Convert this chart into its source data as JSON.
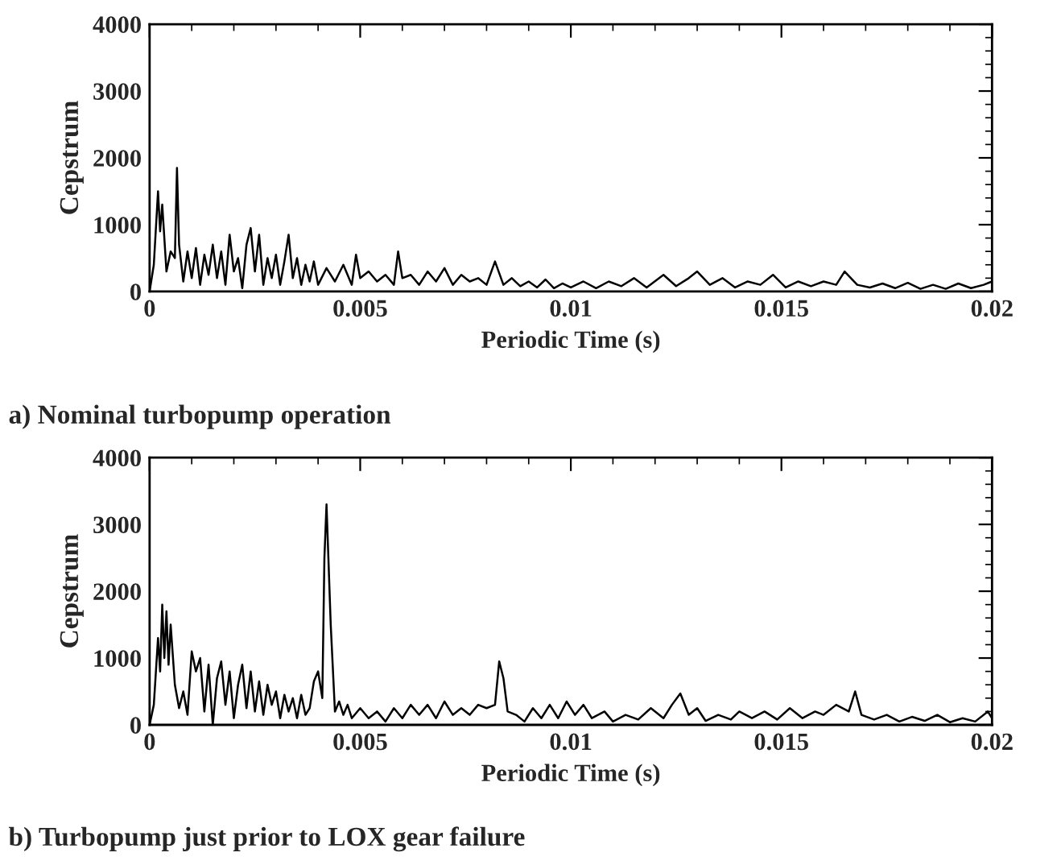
{
  "chart_data": [
    {
      "type": "line",
      "xlabel": "Periodic Time (s)",
      "ylabel": "Cepstrum",
      "annotations": [
        "a) Nominal turbopump operation"
      ],
      "xlim": [
        0,
        0.02
      ],
      "ylim": [
        0,
        4000
      ],
      "xticks": [
        0,
        0.005,
        0.01,
        0.015,
        0.02
      ],
      "yticks": [
        0,
        1000,
        2000,
        3000,
        4000
      ],
      "grid": false,
      "series": [
        {
          "color": "#000000",
          "x": [
            0,
            0.0001,
            0.0002,
            0.00025,
            0.0003,
            0.0004,
            0.0005,
            0.0006,
            0.00065,
            0.0007,
            0.0008,
            0.0009,
            0.001,
            0.0011,
            0.0012,
            0.0013,
            0.0014,
            0.0015,
            0.0016,
            0.0017,
            0.0018,
            0.0019,
            0.002,
            0.0021,
            0.0022,
            0.0023,
            0.0024,
            0.0025,
            0.0026,
            0.0027,
            0.0028,
            0.0029,
            0.003,
            0.0031,
            0.0032,
            0.0033,
            0.0034,
            0.0035,
            0.0036,
            0.0037,
            0.0038,
            0.0039,
            0.004,
            0.0042,
            0.0044,
            0.0046,
            0.0048,
            0.0049,
            0.005,
            0.0052,
            0.0054,
            0.0056,
            0.0058,
            0.0059,
            0.006,
            0.0062,
            0.0064,
            0.0066,
            0.0068,
            0.007,
            0.0072,
            0.0074,
            0.0076,
            0.0078,
            0.008,
            0.0082,
            0.0084,
            0.0086,
            0.0088,
            0.009,
            0.0092,
            0.0094,
            0.0096,
            0.0098,
            0.01,
            0.0103,
            0.0106,
            0.0109,
            0.0112,
            0.0115,
            0.0118,
            0.0122,
            0.0125,
            0.0128,
            0.013,
            0.0133,
            0.0136,
            0.0139,
            0.0142,
            0.0145,
            0.0148,
            0.0151,
            0.0154,
            0.0157,
            0.016,
            0.0163,
            0.0165,
            0.0168,
            0.0171,
            0.0174,
            0.0177,
            0.018,
            0.0183,
            0.0186,
            0.0189,
            0.0192,
            0.0195,
            0.0198,
            0.02
          ],
          "values": [
            0,
            400,
            1500,
            900,
            1300,
            300,
            600,
            500,
            1850,
            700,
            150,
            600,
            200,
            650,
            100,
            550,
            250,
            700,
            200,
            600,
            100,
            850,
            300,
            500,
            50,
            700,
            950,
            300,
            850,
            100,
            500,
            200,
            550,
            100,
            450,
            850,
            200,
            500,
            100,
            400,
            150,
            450,
            100,
            350,
            150,
            400,
            100,
            550,
            200,
            300,
            150,
            250,
            100,
            600,
            200,
            250,
            100,
            300,
            150,
            350,
            100,
            250,
            150,
            200,
            100,
            450,
            100,
            200,
            80,
            150,
            60,
            180,
            50,
            120,
            60,
            150,
            50,
            150,
            80,
            200,
            60,
            250,
            80,
            200,
            300,
            100,
            200,
            60,
            150,
            100,
            250,
            60,
            150,
            80,
            150,
            100,
            300,
            100,
            60,
            120,
            50,
            130,
            40,
            100,
            40,
            120,
            50,
            100,
            150
          ]
        }
      ]
    },
    {
      "type": "line",
      "xlabel": "Periodic Time (s)",
      "ylabel": "Cepstrum",
      "annotations": [
        "b) Turbopump just prior to LOX gear failure"
      ],
      "xlim": [
        0,
        0.02
      ],
      "ylim": [
        0,
        4000
      ],
      "xticks": [
        0,
        0.005,
        0.01,
        0.015,
        0.02
      ],
      "yticks": [
        0,
        1000,
        2000,
        3000,
        4000
      ],
      "grid": false,
      "series": [
        {
          "color": "#000000",
          "x": [
            0,
            0.0001,
            0.0002,
            0.00025,
            0.0003,
            0.00035,
            0.0004,
            0.00045,
            0.0005,
            0.0006,
            0.0007,
            0.0008,
            0.0009,
            0.001,
            0.0011,
            0.0012,
            0.0013,
            0.0014,
            0.0015,
            0.0016,
            0.0017,
            0.0018,
            0.0019,
            0.002,
            0.0021,
            0.0022,
            0.0023,
            0.0024,
            0.0025,
            0.0026,
            0.0027,
            0.0028,
            0.0029,
            0.003,
            0.0031,
            0.0032,
            0.0033,
            0.0034,
            0.0035,
            0.0036,
            0.0037,
            0.0038,
            0.0039,
            0.004,
            0.0041,
            0.00415,
            0.0042,
            0.0043,
            0.0044,
            0.0045,
            0.0046,
            0.0047,
            0.0048,
            0.005,
            0.0052,
            0.0054,
            0.0056,
            0.0058,
            0.006,
            0.0062,
            0.0064,
            0.0066,
            0.0068,
            0.007,
            0.0072,
            0.0074,
            0.0076,
            0.0078,
            0.008,
            0.0082,
            0.0083,
            0.0084,
            0.0085,
            0.0087,
            0.0089,
            0.0091,
            0.0093,
            0.0095,
            0.0097,
            0.0099,
            0.0101,
            0.0103,
            0.0105,
            0.0108,
            0.011,
            0.0113,
            0.0116,
            0.0119,
            0.0122,
            0.0124,
            0.0126,
            0.0128,
            0.013,
            0.0132,
            0.0135,
            0.0138,
            0.014,
            0.0143,
            0.0146,
            0.0149,
            0.0152,
            0.0155,
            0.0158,
            0.016,
            0.0163,
            0.0166,
            0.01675,
            0.0169,
            0.0172,
            0.0175,
            0.0178,
            0.0181,
            0.0184,
            0.0187,
            0.019,
            0.0193,
            0.0196,
            0.0199,
            0.02
          ],
          "values": [
            0,
            300,
            1300,
            800,
            1800,
            1000,
            1700,
            900,
            1500,
            600,
            250,
            500,
            150,
            1100,
            800,
            1000,
            200,
            900,
            0,
            700,
            950,
            300,
            800,
            100,
            600,
            900,
            250,
            800,
            200,
            650,
            150,
            600,
            300,
            500,
            100,
            450,
            200,
            400,
            100,
            450,
            150,
            250,
            650,
            800,
            400,
            2500,
            3300,
            1500,
            200,
            350,
            150,
            300,
            100,
            250,
            100,
            200,
            50,
            250,
            100,
            300,
            150,
            300,
            100,
            350,
            150,
            250,
            150,
            300,
            250,
            300,
            950,
            700,
            200,
            150,
            50,
            250,
            100,
            300,
            100,
            350,
            150,
            300,
            100,
            200,
            50,
            150,
            80,
            250,
            100,
            300,
            470,
            150,
            250,
            60,
            150,
            80,
            200,
            100,
            200,
            80,
            250,
            100,
            200,
            150,
            300,
            200,
            500,
            150,
            80,
            150,
            50,
            120,
            60,
            150,
            40,
            100,
            50,
            200,
            100
          ]
        }
      ]
    }
  ]
}
